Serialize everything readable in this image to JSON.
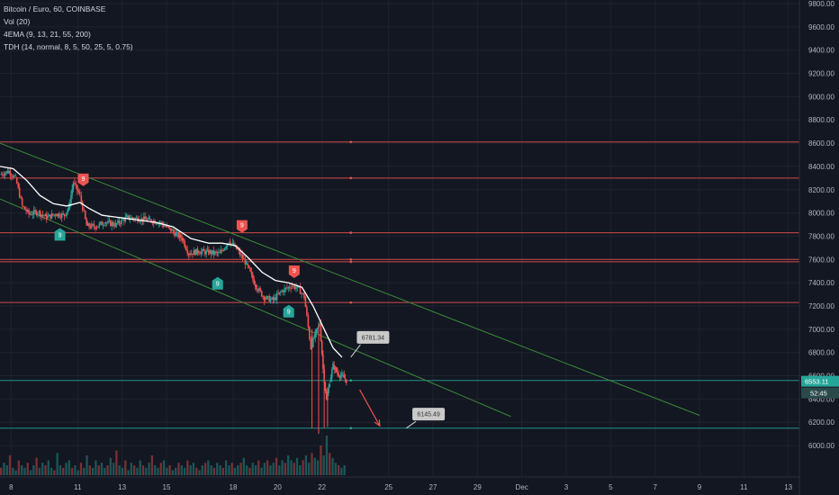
{
  "legend": {
    "symbol": "Bitcoin / Euro, 60, COINBASE",
    "vol": "Vol (20)",
    "ema": "4EMA (9, 13, 21, 55, 200)",
    "tdh": "TDH (14, normal, 8, 5, 50, 25, 5, 0.75)"
  },
  "colors": {
    "background": "#131722",
    "grid": "#1e222d",
    "up": "#26a69a",
    "down": "#ef5350",
    "ema": "#ffffff",
    "resistance": "#ef5350",
    "support": "#26a69a",
    "channel": "#3a8a3a",
    "buy_signal": "#26a69a",
    "sell_signal": "#ef5350",
    "note_bg": "#c9c9c9"
  },
  "chart_data": {
    "type": "candlestick",
    "y_axis": {
      "min": 5900,
      "max": 9800,
      "ticks": [
        6000,
        6200,
        6400,
        6600,
        6800,
        7000,
        7200,
        7400,
        7600,
        7800,
        8000,
        8200,
        8400,
        8600,
        8800,
        9000,
        9200,
        9400,
        9600,
        9800
      ],
      "tick_labels": [
        "6000.00",
        "6200.00",
        "6400.00",
        "6600.00",
        "6800.00",
        "7000.00",
        "7200.00",
        "7400.00",
        "7600.00",
        "7800.00",
        "8000.00",
        "8200.00",
        "8400.00",
        "8600.00",
        "8800.00",
        "9000.00",
        "9200.00",
        "9400.00",
        "9600.00",
        "9800.00"
      ]
    },
    "x_axis": {
      "labels": [
        "8",
        "11",
        "13",
        "15",
        "18",
        "20",
        "22",
        "25",
        "27",
        "29",
        "Dec",
        "3",
        "5",
        "7",
        "9",
        "11",
        "13"
      ],
      "positions": [
        0.5,
        3.5,
        5.5,
        7.5,
        10.5,
        12.5,
        14.5,
        17.5,
        19.5,
        21.5,
        23.5,
        25.5,
        27.5,
        29.5,
        31.5,
        33.5,
        35.5
      ],
      "range": [
        0,
        36
      ]
    },
    "last_price": {
      "label": "6553.11",
      "value": 6553.11
    },
    "countdown": {
      "label": "52:45"
    },
    "price_path": [
      [
        0,
        8330
      ],
      [
        0.4,
        8360
      ],
      [
        0.7,
        8300
      ],
      [
        1.0,
        8060
      ],
      [
        1.3,
        7990
      ],
      [
        1.7,
        8010
      ],
      [
        2.1,
        7960
      ],
      [
        2.5,
        7990
      ],
      [
        2.9,
        7980
      ],
      [
        3.1,
        8050
      ],
      [
        3.3,
        8260
      ],
      [
        3.6,
        8150
      ],
      [
        3.9,
        7890
      ],
      [
        4.3,
        7880
      ],
      [
        4.7,
        7920
      ],
      [
        5.2,
        7900
      ],
      [
        5.7,
        7960
      ],
      [
        6.2,
        7950
      ],
      [
        6.7,
        7940
      ],
      [
        7.2,
        7920
      ],
      [
        7.7,
        7850
      ],
      [
        8.2,
        7780
      ],
      [
        8.5,
        7650
      ],
      [
        8.9,
        7670
      ],
      [
        9.4,
        7660
      ],
      [
        9.9,
        7650
      ],
      [
        10.3,
        7760
      ],
      [
        10.7,
        7680
      ],
      [
        11.1,
        7560
      ],
      [
        11.5,
        7380
      ],
      [
        11.9,
        7270
      ],
      [
        12.3,
        7250
      ],
      [
        12.7,
        7330
      ],
      [
        13.1,
        7370
      ],
      [
        13.4,
        7360
      ],
      [
        13.7,
        7280
      ],
      [
        14.0,
        6840
      ],
      [
        14.2,
        6960
      ],
      [
        14.4,
        7050
      ],
      [
        14.55,
        6660
      ],
      [
        14.7,
        6390
      ],
      [
        14.85,
        6550
      ],
      [
        15.0,
        6690
      ],
      [
        15.2,
        6620
      ],
      [
        15.4,
        6600
      ],
      [
        15.6,
        6560
      ]
    ],
    "ema_path": [
      [
        0,
        8400
      ],
      [
        0.6,
        8380
      ],
      [
        1.2,
        8280
      ],
      [
        1.8,
        8150
      ],
      [
        2.4,
        8080
      ],
      [
        3.0,
        8060
      ],
      [
        3.6,
        8090
      ],
      [
        4.0,
        8040
      ],
      [
        4.6,
        7980
      ],
      [
        5.4,
        7960
      ],
      [
        6.2,
        7940
      ],
      [
        7.0,
        7920
      ],
      [
        7.8,
        7880
      ],
      [
        8.6,
        7780
      ],
      [
        9.4,
        7740
      ],
      [
        10.0,
        7740
      ],
      [
        10.6,
        7720
      ],
      [
        11.2,
        7610
      ],
      [
        11.8,
        7490
      ],
      [
        12.4,
        7420
      ],
      [
        13.0,
        7400
      ],
      [
        13.6,
        7360
      ],
      [
        14.1,
        7200
      ],
      [
        14.6,
        7000
      ],
      [
        15.0,
        6840
      ],
      [
        15.4,
        6760
      ]
    ],
    "horizontal_lines": [
      {
        "value": 8610,
        "kind": "resistance"
      },
      {
        "value": 8300,
        "kind": "resistance"
      },
      {
        "value": 7830,
        "kind": "resistance"
      },
      {
        "value": 7600,
        "kind": "resistance"
      },
      {
        "value": 7580,
        "kind": "resistance"
      },
      {
        "value": 7230,
        "kind": "resistance"
      },
      {
        "value": 6150,
        "kind": "support"
      },
      {
        "value": 6560,
        "kind": "support"
      }
    ],
    "channel_lines": [
      {
        "from": [
          0,
          8600
        ],
        "to": [
          31.5,
          6260
        ]
      },
      {
        "from": [
          0,
          8120
        ],
        "to": [
          23.0,
          6250
        ]
      }
    ],
    "signals": [
      {
        "type": "buy",
        "x": 2.7,
        "y": 7870,
        "label": "9"
      },
      {
        "type": "sell",
        "x": 3.75,
        "y": 8230,
        "label": "9"
      },
      {
        "type": "sell",
        "x": 10.9,
        "y": 7830,
        "label": "9"
      },
      {
        "type": "buy",
        "x": 9.8,
        "y": 7450,
        "label": "9"
      },
      {
        "type": "sell",
        "x": 13.25,
        "y": 7440,
        "label": "9"
      },
      {
        "type": "buy",
        "x": 13.0,
        "y": 7210,
        "label": "9"
      }
    ],
    "notes": [
      {
        "label": "6781.34",
        "x": 16.8,
        "y": 6930,
        "pointer_x": 15.8,
        "pointer_y": 6760
      },
      {
        "label": "6145.49",
        "x": 19.3,
        "y": 6270,
        "pointer_x": 18.3,
        "pointer_y": 6150
      }
    ],
    "arrow": {
      "from": [
        16.2,
        6480
      ],
      "to": [
        17.1,
        6170
      ]
    },
    "volume_bars": [
      0.3,
      0.5,
      0.4,
      0.8,
      0.3,
      0.2,
      0.6,
      0.4,
      0.3,
      0.5,
      0.2,
      0.4,
      0.7,
      0.3,
      0.5,
      0.4,
      0.6,
      0.3,
      0.2,
      0.9,
      0.4,
      0.3,
      0.5,
      0.6,
      0.3,
      0.4,
      0.2,
      0.5,
      0.3,
      0.8,
      0.4,
      0.3,
      0.6,
      0.4,
      0.5,
      0.3,
      0.4,
      0.7,
      0.5,
      1.0,
      0.4,
      0.3,
      0.6,
      0.2,
      0.5,
      0.4,
      0.3,
      0.6,
      0.4,
      0.3,
      0.5,
      0.8,
      0.4,
      0.3,
      0.5,
      0.6,
      0.3,
      0.4,
      0.2,
      0.3,
      0.5,
      0.4,
      0.3,
      0.6,
      0.4,
      0.5,
      0.3,
      0.2,
      0.4,
      0.5,
      0.6,
      0.4,
      0.3,
      0.5,
      0.4,
      0.3,
      0.6,
      0.4,
      0.5,
      0.3,
      0.4,
      0.5,
      0.7,
      0.4,
      0.3,
      0.5,
      0.4,
      0.6,
      0.3,
      0.5,
      0.6,
      0.4,
      0.5,
      0.7,
      0.4,
      0.6,
      0.5,
      0.8,
      0.6,
      0.5,
      0.7,
      0.4,
      0.6,
      0.8,
      0.5,
      0.9,
      0.7,
      0.6,
      1.2,
      0.8,
      1.6,
      0.9,
      0.7,
      0.5,
      0.4,
      0.3,
      0.4
    ]
  }
}
